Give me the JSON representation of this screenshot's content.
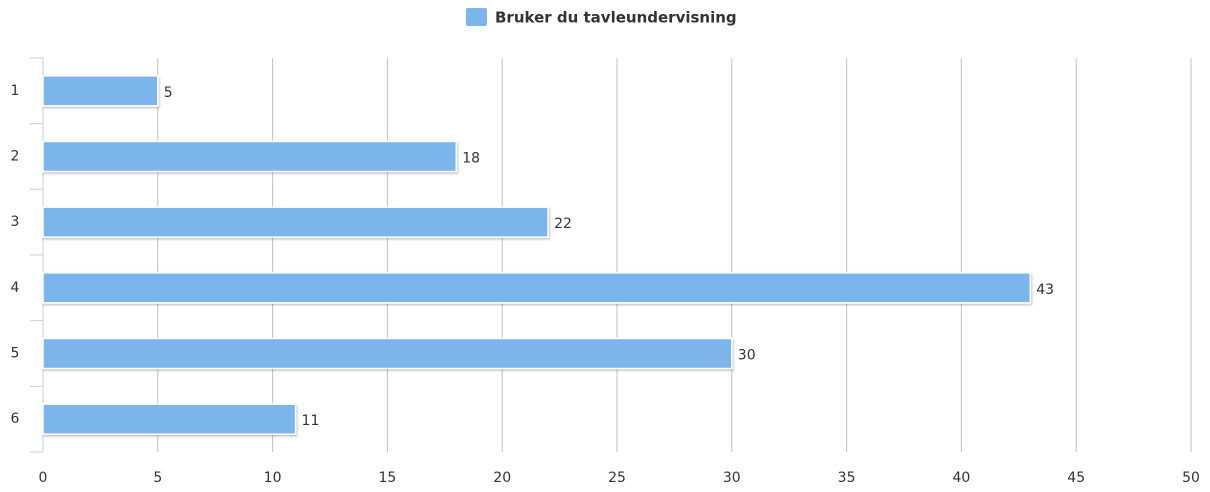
{
  "chart_data": {
    "type": "bar",
    "orientation": "horizontal",
    "categories": [
      "1",
      "2",
      "3",
      "4",
      "5",
      "6"
    ],
    "series": [
      {
        "name": "Bruker du tavleundervisning",
        "color": "#7cb5ec",
        "values": [
          5,
          18,
          22,
          43,
          30,
          11
        ]
      }
    ],
    "xlim": [
      0,
      50
    ],
    "xticks": [
      0,
      5,
      10,
      15,
      20,
      25,
      30,
      35,
      40,
      45,
      50
    ],
    "grid": true,
    "legend": "top"
  }
}
